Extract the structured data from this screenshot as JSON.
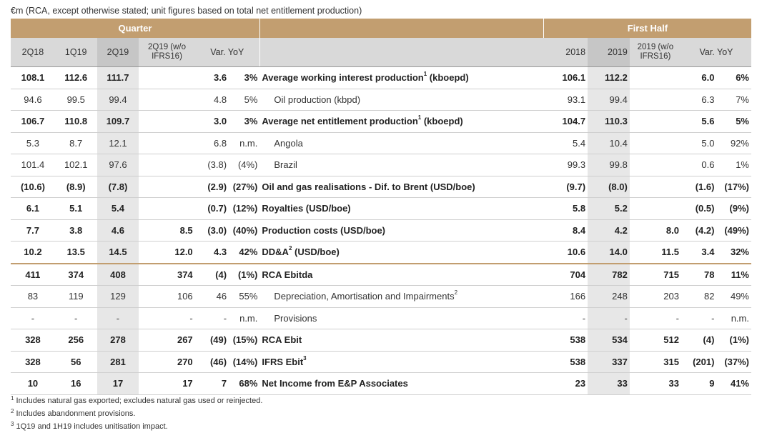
{
  "unit_note": "€m (RCA, except otherwise stated; unit figures based on total net entitlement production)",
  "header": {
    "quarter": "Quarter",
    "first_half": "First Half",
    "q_cols": [
      "2Q18",
      "1Q19",
      "2Q19"
    ],
    "q_ifrs": [
      "2Q19 (w/o",
      "IFRS16)"
    ],
    "q_var": "Var. YoY",
    "h_cols": [
      "2018",
      "2019"
    ],
    "h_ifrs": [
      "2019 (w/o",
      "IFRS16)"
    ],
    "h_var": "Var. YoY"
  },
  "rows": [
    {
      "q": [
        "108.1",
        "112.6",
        "111.7"
      ],
      "qi": "",
      "qv": [
        "3.6",
        "3%"
      ],
      "label": "Average working interest production",
      "sup": "1",
      "unit": " (kboepd)",
      "h": [
        "106.1",
        "112.2"
      ],
      "hi": "",
      "hv": [
        "6.0",
        "6%"
      ]
    },
    {
      "q": [
        "94.6",
        "99.5",
        "99.4"
      ],
      "qi": "",
      "qv": [
        "4.8",
        "5%"
      ],
      "label": "Oil production (kbpd)",
      "sup": "",
      "unit": "",
      "h": [
        "93.1",
        "99.4"
      ],
      "hi": "",
      "hv": [
        "6.3",
        "7%"
      ]
    },
    {
      "q": [
        "106.7",
        "110.8",
        "109.7"
      ],
      "qi": "",
      "qv": [
        "3.0",
        "3%"
      ],
      "label": "Average net entitlement production",
      "sup": "1",
      "unit": " (kboepd)",
      "h": [
        "104.7",
        "110.3"
      ],
      "hi": "",
      "hv": [
        "5.6",
        "5%"
      ]
    },
    {
      "q": [
        "5.3",
        "8.7",
        "12.1"
      ],
      "qi": "",
      "qv": [
        "6.8",
        "n.m."
      ],
      "label": "Angola",
      "sup": "",
      "unit": "",
      "h": [
        "5.4",
        "10.4"
      ],
      "hi": "",
      "hv": [
        "5.0",
        "92%"
      ]
    },
    {
      "q": [
        "101.4",
        "102.1",
        "97.6"
      ],
      "qi": "",
      "qv": [
        "(3.8)",
        "(4%)"
      ],
      "label": "Brazil",
      "sup": "",
      "unit": "",
      "h": [
        "99.3",
        "99.8"
      ],
      "hi": "",
      "hv": [
        "0.6",
        "1%"
      ]
    },
    {
      "q": [
        "(10.6)",
        "(8.9)",
        "(7.8)"
      ],
      "qi": "",
      "qv": [
        "(2.9)",
        "(27%)"
      ],
      "label": "Oil and gas realisations - Dif. to Brent (USD/boe)",
      "sup": "",
      "unit": "",
      "h": [
        "(9.7)",
        "(8.0)"
      ],
      "hi": "",
      "hv": [
        "(1.6)",
        "(17%)"
      ]
    },
    {
      "q": [
        "6.1",
        "5.1",
        "5.4"
      ],
      "qi": "",
      "qv": [
        "(0.7)",
        "(12%)"
      ],
      "label": "Royalties (USD/boe)",
      "sup": "",
      "unit": "",
      "h": [
        "5.8",
        "5.2"
      ],
      "hi": "",
      "hv": [
        "(0.5)",
        "(9%)"
      ]
    },
    {
      "q": [
        "7.7",
        "3.8",
        "4.6"
      ],
      "qi": "8.5",
      "qv": [
        "(3.0)",
        "(40%)"
      ],
      "label": "Production costs (USD/boe)",
      "sup": "",
      "unit": "",
      "h": [
        "8.4",
        "4.2"
      ],
      "hi": "8.0",
      "hv": [
        "(4.2)",
        "(49%)"
      ]
    },
    {
      "q": [
        "10.2",
        "13.5",
        "14.5"
      ],
      "qi": "12.0",
      "qv": [
        "4.3",
        "42%"
      ],
      "label": "DD&A",
      "sup": "2",
      "unit": " (USD/boe)",
      "h": [
        "10.6",
        "14.0"
      ],
      "hi": "11.5",
      "hv": [
        "3.4",
        "32%"
      ]
    },
    {
      "q": [
        "411",
        "374",
        "408"
      ],
      "qi": "374",
      "qv": [
        "(4)",
        "(1%)"
      ],
      "label": "RCA Ebitda",
      "sup": "",
      "unit": "",
      "h": [
        "704",
        "782"
      ],
      "hi": "715",
      "hv": [
        "78",
        "11%"
      ]
    },
    {
      "q": [
        "83",
        "119",
        "129"
      ],
      "qi": "106",
      "qv": [
        "46",
        "55%"
      ],
      "label": "Depreciation, Amortisation and Impairments",
      "sup": "2",
      "unit": "",
      "h": [
        "166",
        "248"
      ],
      "hi": "203",
      "hv": [
        "82",
        "49%"
      ]
    },
    {
      "q": [
        "-",
        "-",
        "-"
      ],
      "qi": "-",
      "qv": [
        "-",
        "n.m."
      ],
      "label": "Provisions",
      "sup": "",
      "unit": "",
      "h": [
        "-",
        "-"
      ],
      "hi": "-",
      "hv": [
        "-",
        "n.m."
      ]
    },
    {
      "q": [
        "328",
        "256",
        "278"
      ],
      "qi": "267",
      "qv": [
        "(49)",
        "(15%)"
      ],
      "label": "RCA Ebit",
      "sup": "",
      "unit": "",
      "h": [
        "538",
        "534"
      ],
      "hi": "512",
      "hv": [
        "(4)",
        "(1%)"
      ]
    },
    {
      "q": [
        "328",
        "56",
        "281"
      ],
      "qi": "270",
      "qv": [
        "(46)",
        "(14%)"
      ],
      "label": "IFRS Ebit",
      "sup": "3",
      "unit": "",
      "h": [
        "538",
        "337"
      ],
      "hi": "315",
      "hv": [
        "(201)",
        "(37%)"
      ]
    },
    {
      "q": [
        "10",
        "16",
        "17"
      ],
      "qi": "17",
      "qv": [
        "7",
        "68%"
      ],
      "label": "Net Income from E&P Associates",
      "sup": "",
      "unit": "",
      "h": [
        "23",
        "33"
      ],
      "hi": "33",
      "hv": [
        "9",
        "41%"
      ]
    }
  ],
  "footnotes": [
    {
      "num": "1",
      "text": " Includes natural gas exported; excludes natural gas used or reinjected."
    },
    {
      "num": "2",
      "text": " Includes abandonment provisions."
    },
    {
      "num": "3",
      "text": " 1Q19 and 1H19 includes unitisation impact."
    }
  ]
}
